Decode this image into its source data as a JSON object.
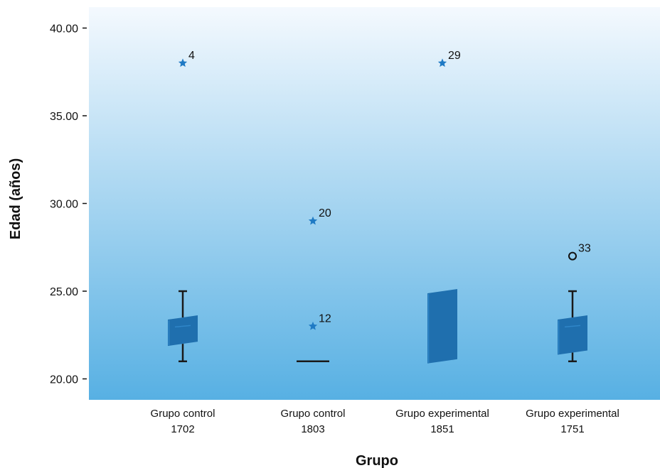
{
  "chart_data": {
    "type": "box",
    "xlabel": "Grupo",
    "ylabel": "Edad (años)",
    "ylim": [
      19,
      41
    ],
    "yticks": [
      20,
      25,
      30,
      35,
      40
    ],
    "ytick_labels": [
      "20.00",
      "25.00",
      "30.00",
      "35.00",
      "40.00"
    ],
    "grid": false,
    "colors": {
      "box": "#1f6fae",
      "box_light": "#2f86c8",
      "whisker": "#1a1a1a",
      "star": "#1f7ac4",
      "bg_top": "#f4f9fe",
      "bg_bottom": "#57b0e3"
    },
    "groups": [
      {
        "label_line1": "Grupo control",
        "label_line2": "1702",
        "whisker_low": 21,
        "q1": 22,
        "median": 23,
        "q3": 23.5,
        "whisker_high": 25,
        "outliers": [
          {
            "value": 38,
            "label": "4",
            "marker": "star"
          }
        ]
      },
      {
        "label_line1": "Grupo control",
        "label_line2": "1803",
        "whisker_low": 21,
        "q1": 21,
        "median": 21,
        "q3": 21,
        "whisker_high": 21,
        "outliers": [
          {
            "value": 29,
            "label": "20",
            "marker": "star"
          },
          {
            "value": 23,
            "label": "12",
            "marker": "star"
          }
        ]
      },
      {
        "label_line1": "Grupo experimental",
        "label_line2": "1851",
        "whisker_low": 21,
        "q1": 21,
        "median": 21,
        "q3": 25,
        "whisker_high": 25,
        "outliers": [
          {
            "value": 38,
            "label": "29",
            "marker": "star"
          }
        ]
      },
      {
        "label_line1": "Grupo experimental",
        "label_line2": "1751",
        "whisker_low": 21,
        "q1": 21.5,
        "median": 23,
        "q3": 23.5,
        "whisker_high": 25,
        "outliers": [
          {
            "value": 27,
            "label": "33",
            "marker": "circle"
          }
        ]
      }
    ]
  }
}
